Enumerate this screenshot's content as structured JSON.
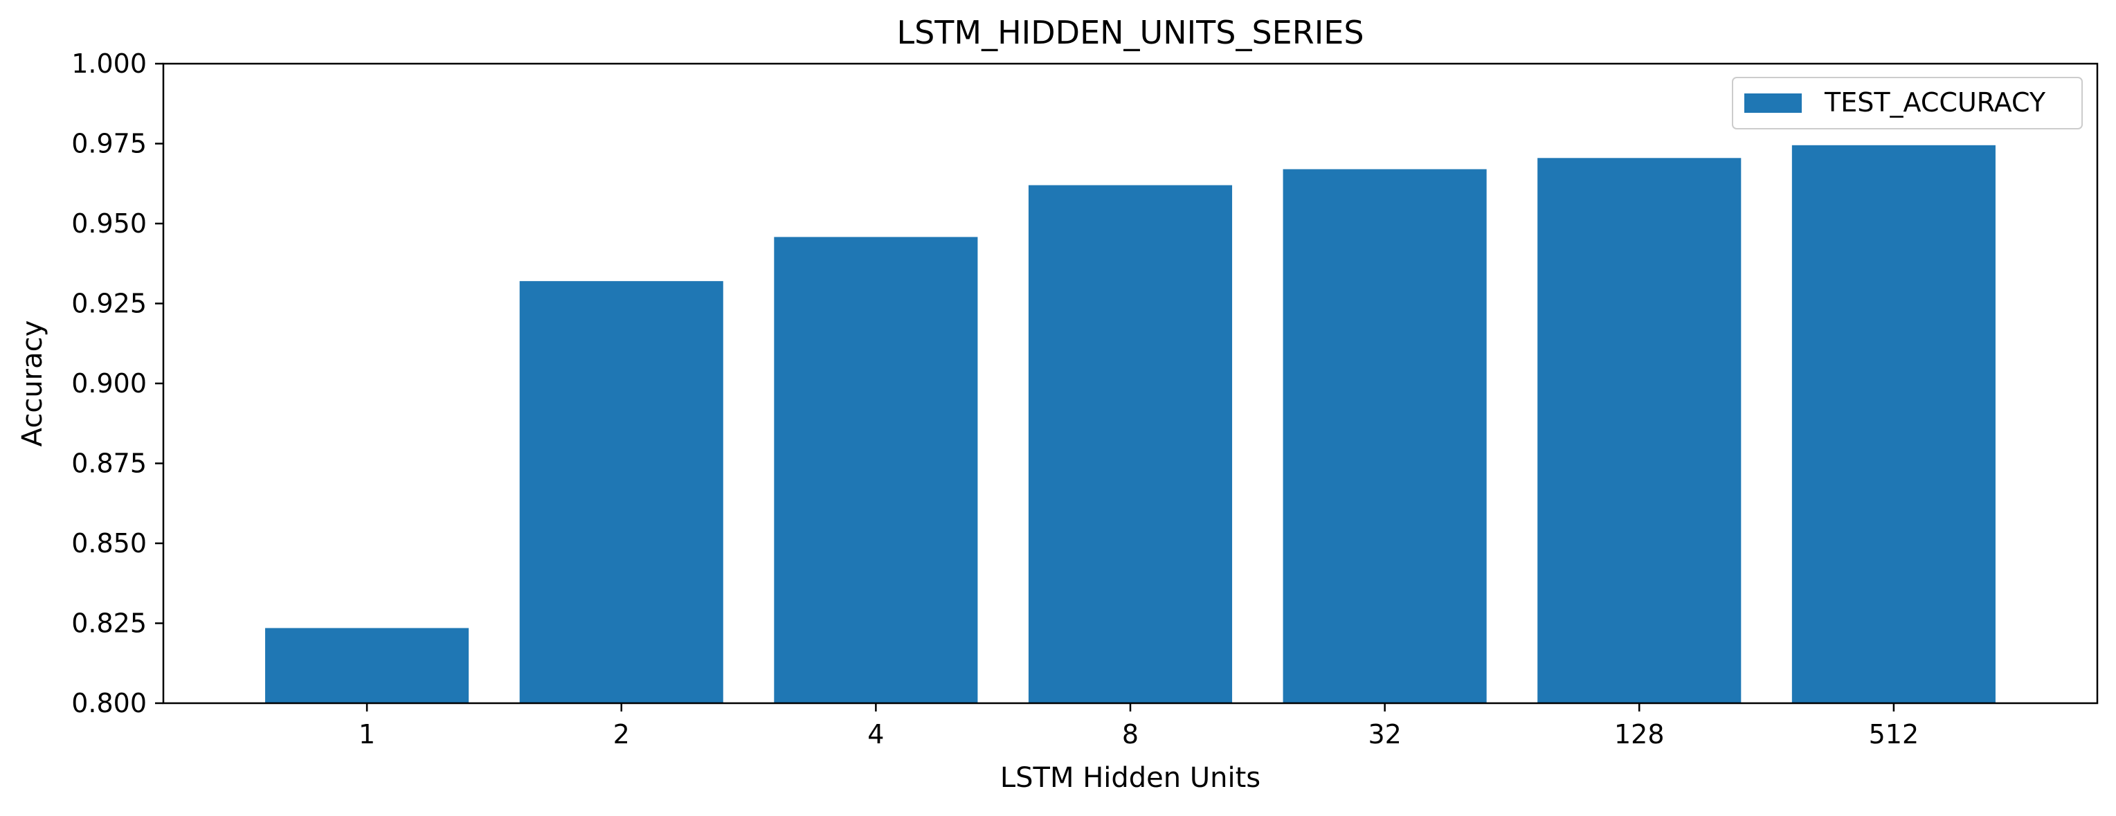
{
  "chart_data": {
    "type": "bar",
    "title": "LSTM_HIDDEN_UNITS_SERIES",
    "xlabel": "LSTM Hidden Units",
    "ylabel": "Accuracy",
    "categories": [
      "1",
      "2",
      "4",
      "8",
      "32",
      "128",
      "512"
    ],
    "series": [
      {
        "name": "TEST_ACCURACY",
        "color": "#1f77b4",
        "values": [
          0.8235,
          0.932,
          0.9458,
          0.962,
          0.967,
          0.9705,
          0.9745
        ]
      }
    ],
    "ylim": [
      0.8,
      1.0
    ],
    "yticks": [
      "0.800",
      "0.825",
      "0.850",
      "0.875",
      "0.900",
      "0.925",
      "0.950",
      "0.975",
      "1.000"
    ],
    "grid": false,
    "legend_position": "top-right"
  }
}
